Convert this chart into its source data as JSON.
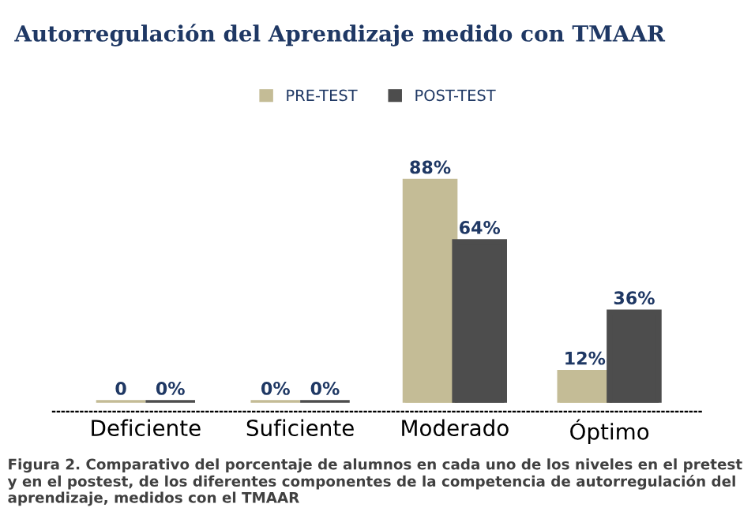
{
  "chart_data": {
    "type": "bar",
    "title": "Autorregulación del Aprendizaje medido con TMAAR",
    "categories": [
      "Deficiente",
      "Suficiente",
      "Moderado",
      "Óptimo"
    ],
    "series": [
      {
        "name": "PRE-TEST",
        "color": "#c4bc96",
        "values": [
          0,
          0,
          88,
          12
        ],
        "value_labels": [
          "0",
          "0%",
          "88%",
          "12%"
        ]
      },
      {
        "name": "POST-TEST",
        "color": "#4d4d4d",
        "values": [
          0,
          0,
          64,
          36
        ],
        "value_labels": [
          "0%",
          "0%",
          "64%",
          "36%"
        ]
      }
    ],
    "legend": "top",
    "grid": false,
    "annotations": [
      "Figura 2. Comparativo del porcentaje de alumnos en cada uno de los niveles en el pretest y en el postest, de los diferentes componentes de la competencia de autorregulación del aprendizaje, medidos con el TMAAR"
    ]
  }
}
